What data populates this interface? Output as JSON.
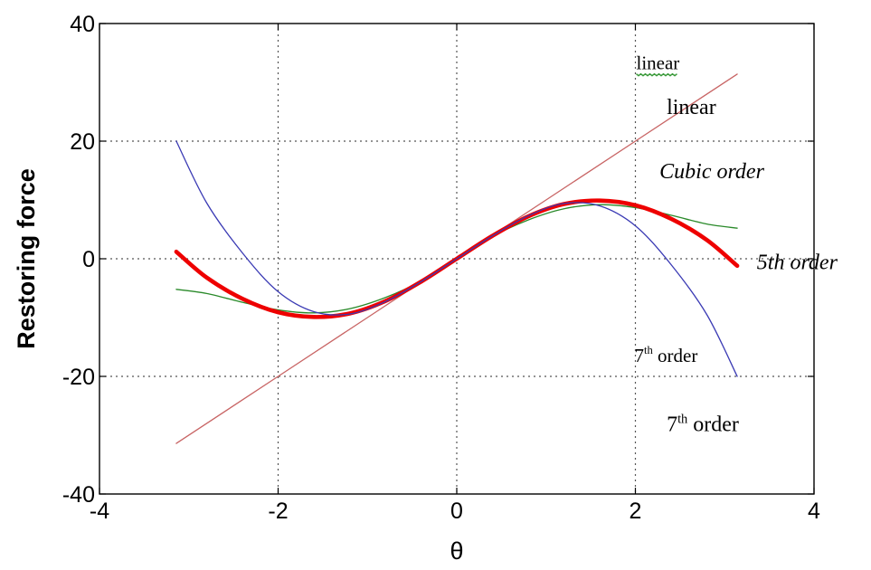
{
  "chart_data": {
    "type": "line",
    "title": "",
    "xlabel": "θ",
    "ylabel": "Restoring force",
    "xlim": [
      -4,
      4
    ],
    "ylim": [
      -40,
      40
    ],
    "xticks": [
      -4,
      -2,
      0,
      2,
      4
    ],
    "yticks": [
      -40,
      -20,
      0,
      20,
      40
    ],
    "grid": true,
    "series": [
      {
        "color": "#c86464",
        "line_width": "thin",
        "x": [
          -3.14,
          -2.0,
          -1.0,
          0.0,
          1.0,
          2.0,
          3.14
        ],
        "y": [
          -31.4,
          -20.0,
          -10.0,
          0.0,
          10.0,
          20.0,
          31.4
        ]
      },
      {
        "color": "#2a8a2a",
        "line_width": "thin",
        "x": [
          -3.14,
          -2.8,
          -2.4,
          -2.0,
          -1.6,
          -1.2,
          -0.8,
          -0.4,
          0.0,
          0.4,
          0.8,
          1.2,
          1.6,
          2.0,
          2.4,
          2.8,
          3.14
        ],
        "y": [
          -5.2,
          -5.9,
          -7.4,
          -8.7,
          -9.2,
          -8.5,
          -6.6,
          -3.8,
          0.0,
          3.8,
          6.6,
          8.5,
          9.2,
          8.7,
          7.4,
          5.9,
          5.2
        ]
      },
      {
        "color": "#ee0000",
        "line_width": "thick",
        "x": [
          -3.14,
          -2.8,
          -2.4,
          -2.0,
          -1.6,
          -1.2,
          -0.8,
          -0.4,
          0.0,
          0.4,
          0.8,
          1.2,
          1.6,
          2.0,
          2.4,
          2.8,
          3.14
        ],
        "y": [
          1.2,
          -3.2,
          -6.8,
          -9.1,
          -9.9,
          -9.3,
          -7.2,
          -3.9,
          0.0,
          3.9,
          7.2,
          9.3,
          9.9,
          9.1,
          6.8,
          3.2,
          -1.2
        ]
      },
      {
        "color": "#3a3ab4",
        "line_width": "thin",
        "x": [
          -3.14,
          -2.8,
          -2.4,
          -2.0,
          -1.6,
          -1.2,
          -0.8,
          -0.4,
          0.0,
          0.4,
          0.8,
          1.2,
          1.6,
          2.0,
          2.4,
          2.8,
          3.14
        ],
        "y": [
          20.0,
          9.5,
          1.0,
          -5.6,
          -9.0,
          -9.4,
          -7.3,
          -3.9,
          0.0,
          3.9,
          7.3,
          9.4,
          9.0,
          5.6,
          -1.0,
          -9.5,
          -20.0
        ]
      }
    ],
    "annotations": [
      {
        "text": "linear",
        "x": 2.01,
        "y": 32.2,
        "style": "small",
        "color": "#000000"
      },
      {
        "text": "linear",
        "x": 2.35,
        "y": 24.6,
        "style": "normal",
        "color": "#000000"
      },
      {
        "text": "Cubic order",
        "x": 2.27,
        "y": 13.7,
        "style": "italic",
        "color": "#000000"
      },
      {
        "text": "5th order",
        "x": 3.36,
        "y": -1.8,
        "style": "italic",
        "color": "#000000"
      },
      {
        "base": "7",
        "sup": "th",
        "text": " order",
        "x": 1.99,
        "y": -17.5,
        "style": "small",
        "color": "#000000"
      },
      {
        "base": "7",
        "sup": "th",
        "text": " order",
        "x": 2.35,
        "y": -29.3,
        "style": "normal",
        "color": "#000000"
      }
    ]
  }
}
